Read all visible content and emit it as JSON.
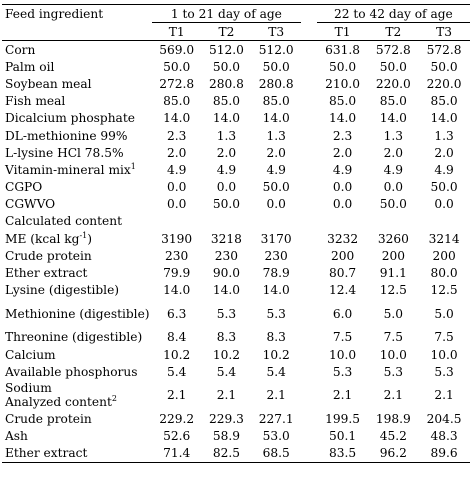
{
  "header": {
    "col0": "Feed ingredient",
    "group1": "1 to 21 day of age",
    "group2": "22 to 42 day of age",
    "treatments": [
      "T1",
      "T2",
      "T3",
      "T1",
      "T2",
      "T3"
    ]
  },
  "rows": [
    {
      "label": "Corn",
      "v": [
        "569.0",
        "512.0",
        "512.0",
        "631.8",
        "572.8",
        "572.8"
      ]
    },
    {
      "label": "Palm oil",
      "v": [
        "50.0",
        "50.0",
        "50.0",
        "50.0",
        "50.0",
        "50.0"
      ]
    },
    {
      "label": "Soybean  meal",
      "v": [
        "272.8",
        "280.8",
        "280.8",
        "210.0",
        "220.0",
        "220.0"
      ]
    },
    {
      "label": "Fish meal",
      "v": [
        "85.0",
        "85.0",
        "85.0",
        "85.0",
        "85.0",
        "85.0"
      ]
    },
    {
      "label": "Dicalcium phosphate",
      "v": [
        "14.0",
        "14.0",
        "14.0",
        "14.0",
        "14.0",
        "14.0"
      ]
    },
    {
      "label": "DL-methionine 99%",
      "v": [
        "2.3",
        "1.3",
        "1.3",
        "2.3",
        "1.3",
        "1.3"
      ]
    },
    {
      "label": "L-lysine HCl 78.5%",
      "v": [
        "2.0",
        "2.0",
        "2.0",
        "2.0",
        "2.0",
        "2.0"
      ]
    },
    {
      "label": "Vitamin-mineral mix",
      "sup": "1",
      "v": [
        "4.9",
        "4.9",
        "4.9",
        "4.9",
        "4.9",
        "4.9"
      ]
    },
    {
      "label": "CGPO",
      "v": [
        "0.0",
        "0.0",
        "50.0",
        "0.0",
        "0.0",
        "50.0"
      ]
    },
    {
      "label": "CGWVO",
      "v": [
        "0.0",
        "50.0",
        "0.0",
        "0.0",
        "50.0",
        "0.0"
      ]
    },
    {
      "label": "Calculated content",
      "v": [
        "",
        "",
        "",
        "",
        "",
        ""
      ]
    },
    {
      "label": "ME (kcal kg",
      "sup": "-1",
      "suffix": ")",
      "v": [
        "3190",
        "3218",
        "3170",
        "3232",
        "3260",
        "3214"
      ]
    },
    {
      "label": "Crude protein",
      "v": [
        "230",
        "230",
        "230",
        "200",
        "200",
        "200"
      ]
    },
    {
      "label": "Ether extract",
      "v": [
        "79.9",
        "90.0",
        "78.9",
        "80.7",
        "91.1",
        "80.0"
      ]
    },
    {
      "label": "Lysine (digestible)",
      "v": [
        "14.0",
        "14.0",
        "14.0",
        "12.4",
        "12.5",
        "12.5"
      ]
    },
    {
      "label": "Methionine (digestible)",
      "tall": true,
      "v": [
        "6.3",
        "5.3",
        "5.3",
        "6.0",
        "5.0",
        "5.0"
      ]
    },
    {
      "label": "Threonine (digestible)",
      "v": [
        "8.4",
        "8.3",
        "8.3",
        "7.5",
        "7.5",
        "7.5"
      ]
    },
    {
      "label": "Calcium",
      "v": [
        "10.2",
        "10.2",
        "10.2",
        "10.0",
        "10.0",
        "10.0"
      ]
    },
    {
      "label": "Available phosphorus",
      "v": [
        "5.4",
        "5.4",
        "5.4",
        "5.3",
        "5.3",
        "5.3"
      ]
    },
    {
      "label": "Sodium",
      "extra": "Analyzed content",
      "extra_sup": "2",
      "tall": true,
      "v": [
        "2.1",
        "2.1",
        "2.1",
        "2.1",
        "2.1",
        "2.1"
      ]
    },
    {
      "label": "Crude protein",
      "v": [
        "229.2",
        "229.3",
        "227.1",
        "199.5",
        "198.9",
        "204.5"
      ]
    },
    {
      "label": "Ash",
      "v": [
        "52.6",
        "58.9",
        "53.0",
        "50.1",
        "45.2",
        "48.3"
      ]
    },
    {
      "label": "Ether extract",
      "v": [
        "71.4",
        "82.5",
        "68.5",
        "83.5",
        "96.2",
        "89.6"
      ]
    }
  ]
}
